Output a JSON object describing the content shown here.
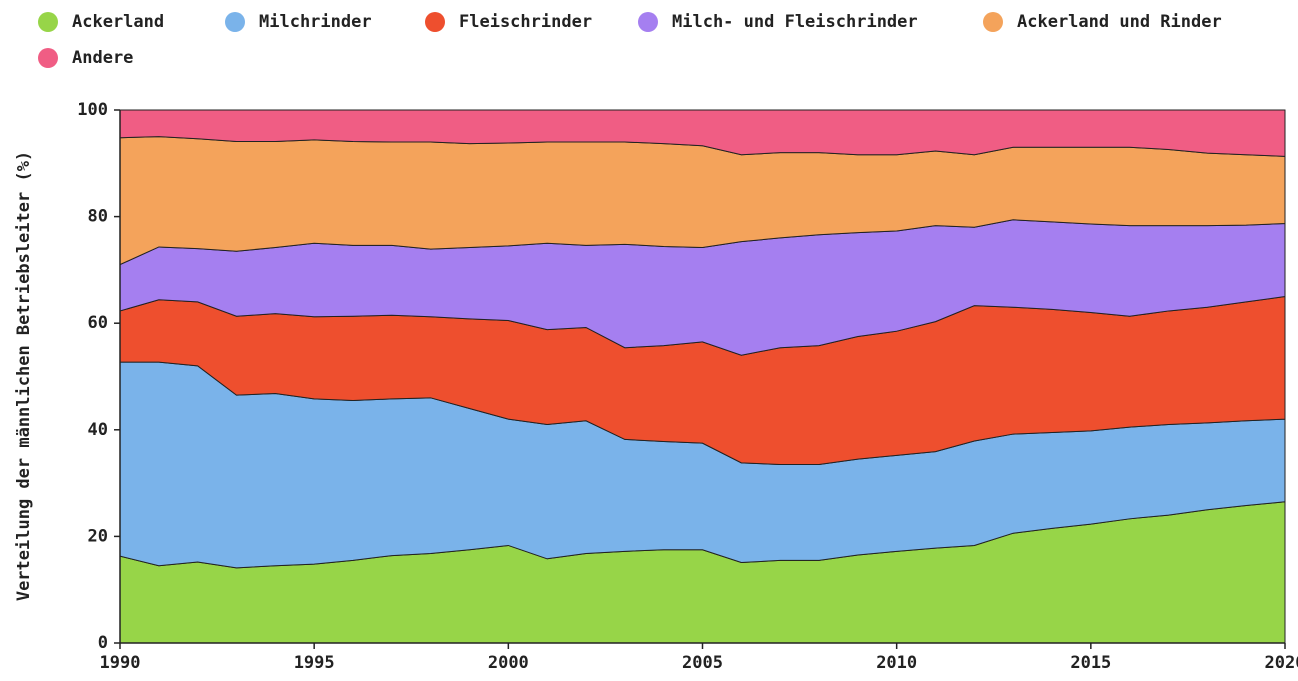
{
  "chart_data": {
    "type": "stacked_area",
    "y_label": "Verteilung der männlichen Betriebsleiter (%)",
    "x": [
      1990,
      1991,
      1992,
      1993,
      1994,
      1995,
      1996,
      1997,
      1998,
      1999,
      2000,
      2001,
      2002,
      2003,
      2004,
      2005,
      2006,
      2007,
      2008,
      2009,
      2010,
      2011,
      2012,
      2013,
      2014,
      2015,
      2016,
      2017,
      2018,
      2019,
      2020
    ],
    "xlim": [
      1990,
      2020
    ],
    "xticks": [
      1990,
      1995,
      2000,
      2005,
      2010,
      2015,
      2020
    ],
    "ylim": [
      0,
      100
    ],
    "yticks": [
      0,
      20,
      40,
      60,
      80,
      100
    ],
    "series": [
      {
        "name": "Ackerland",
        "color": "#97d548",
        "values": [
          16.3,
          14.5,
          15.2,
          14.1,
          14.5,
          14.8,
          15.5,
          16.4,
          16.8,
          17.5,
          18.3,
          15.8,
          16.8,
          17.2,
          17.5,
          17.5,
          15.1,
          15.5,
          15.5,
          16.5,
          17.2,
          17.8,
          18.3,
          20.6,
          21.5,
          22.3,
          23.3,
          24.0,
          25.0,
          25.8,
          26.5
        ]
      },
      {
        "name": "Milchrinder",
        "color": "#7ab3ea",
        "values": [
          36.4,
          38.2,
          36.8,
          32.4,
          32.3,
          31.0,
          30.0,
          29.4,
          29.2,
          26.5,
          23.7,
          25.2,
          24.9,
          21.0,
          20.3,
          20.0,
          18.7,
          18.0,
          18.0,
          18.0,
          18.0,
          18.1,
          19.6,
          18.6,
          18.0,
          17.5,
          17.2,
          17.0,
          16.3,
          15.9,
          15.5
        ]
      },
      {
        "name": "Fleischrinder",
        "color": "#ee4f2e",
        "values": [
          9.6,
          11.7,
          12.0,
          14.8,
          15.0,
          15.4,
          15.8,
          15.7,
          15.2,
          16.8,
          18.5,
          17.8,
          17.5,
          17.2,
          18.0,
          19.0,
          20.2,
          21.9,
          22.3,
          23.0,
          23.3,
          24.4,
          25.4,
          23.8,
          23.1,
          22.2,
          20.8,
          21.3,
          21.7,
          22.3,
          23.0
        ]
      },
      {
        "name": "Milch- und Fleischrinder",
        "color": "#a57ff0",
        "values": [
          8.7,
          9.9,
          10.0,
          12.2,
          12.4,
          13.8,
          13.3,
          13.1,
          12.7,
          13.4,
          14.0,
          16.2,
          15.4,
          19.4,
          18.6,
          17.7,
          21.3,
          20.6,
          20.8,
          19.5,
          18.8,
          18.0,
          14.7,
          16.4,
          16.4,
          16.6,
          17.0,
          16.0,
          15.3,
          14.4,
          13.7
        ]
      },
      {
        "name": "Ackerland und Rinder",
        "color": "#f4a35b",
        "values": [
          23.8,
          20.7,
          20.6,
          20.6,
          19.9,
          19.4,
          19.5,
          19.4,
          20.1,
          19.5,
          19.3,
          19.0,
          19.4,
          19.2,
          19.3,
          19.1,
          16.3,
          16.0,
          15.4,
          14.6,
          14.3,
          14.0,
          13.6,
          13.6,
          14.0,
          14.4,
          14.7,
          14.3,
          13.6,
          13.2,
          12.6
        ]
      },
      {
        "name": "Andere",
        "color": "#f05d84",
        "values": [
          5.2,
          5.0,
          5.4,
          5.9,
          5.9,
          5.6,
          5.9,
          6.0,
          6.0,
          6.3,
          6.2,
          6.0,
          6.0,
          6.0,
          6.3,
          6.7,
          8.4,
          8.0,
          8.0,
          8.4,
          8.4,
          7.7,
          8.4,
          7.0,
          7.0,
          7.0,
          7.0,
          7.4,
          8.1,
          8.4,
          8.7
        ]
      }
    ]
  }
}
